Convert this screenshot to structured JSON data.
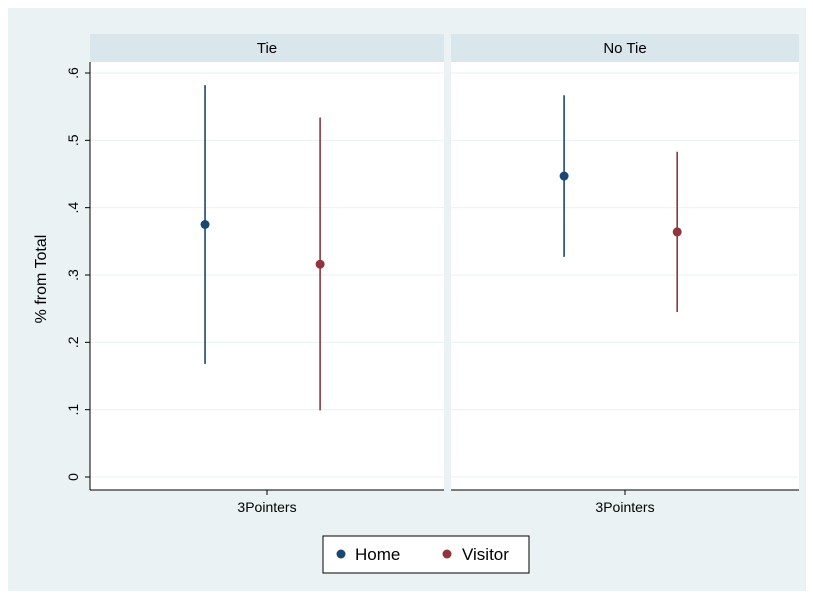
{
  "chart_data": {
    "type": "scatter",
    "ylabel": "% from Total",
    "ylim": [
      0,
      0.6
    ],
    "yticks": [
      {
        "value": 0,
        "label": "0"
      },
      {
        "value": 0.1,
        "label": ".1"
      },
      {
        "value": 0.2,
        "label": ".2"
      },
      {
        "value": 0.3,
        "label": ".3"
      },
      {
        "value": 0.4,
        "label": ".4"
      },
      {
        "value": 0.5,
        "label": ".5"
      },
      {
        "value": 0.6,
        "label": ".6"
      }
    ],
    "grid": true,
    "legend_position": "bottom",
    "panels": [
      {
        "title": "Tie",
        "category": "3Pointers",
        "points": [
          {
            "series": "Home",
            "value": 0.375,
            "ci": [
              0.168,
              0.582
            ]
          },
          {
            "series": "Visitor",
            "value": 0.316,
            "ci": [
              0.099,
              0.534
            ]
          }
        ]
      },
      {
        "title": "No Tie",
        "category": "3Pointers",
        "points": [
          {
            "series": "Home",
            "value": 0.447,
            "ci": [
              0.327,
              0.567
            ]
          },
          {
            "series": "Visitor",
            "value": 0.364,
            "ci": [
              0.245,
              0.483
            ]
          }
        ]
      }
    ],
    "series": [
      {
        "name": "Home",
        "color": "#1a476f"
      },
      {
        "name": "Visitor",
        "color": "#90353b"
      }
    ]
  },
  "colors": {
    "outer_background": "#eaf2f3",
    "plot_background": "#ffffff",
    "strip_background": "#d9e6eb",
    "grid": "#eaf2f3",
    "axis": "#000000"
  }
}
